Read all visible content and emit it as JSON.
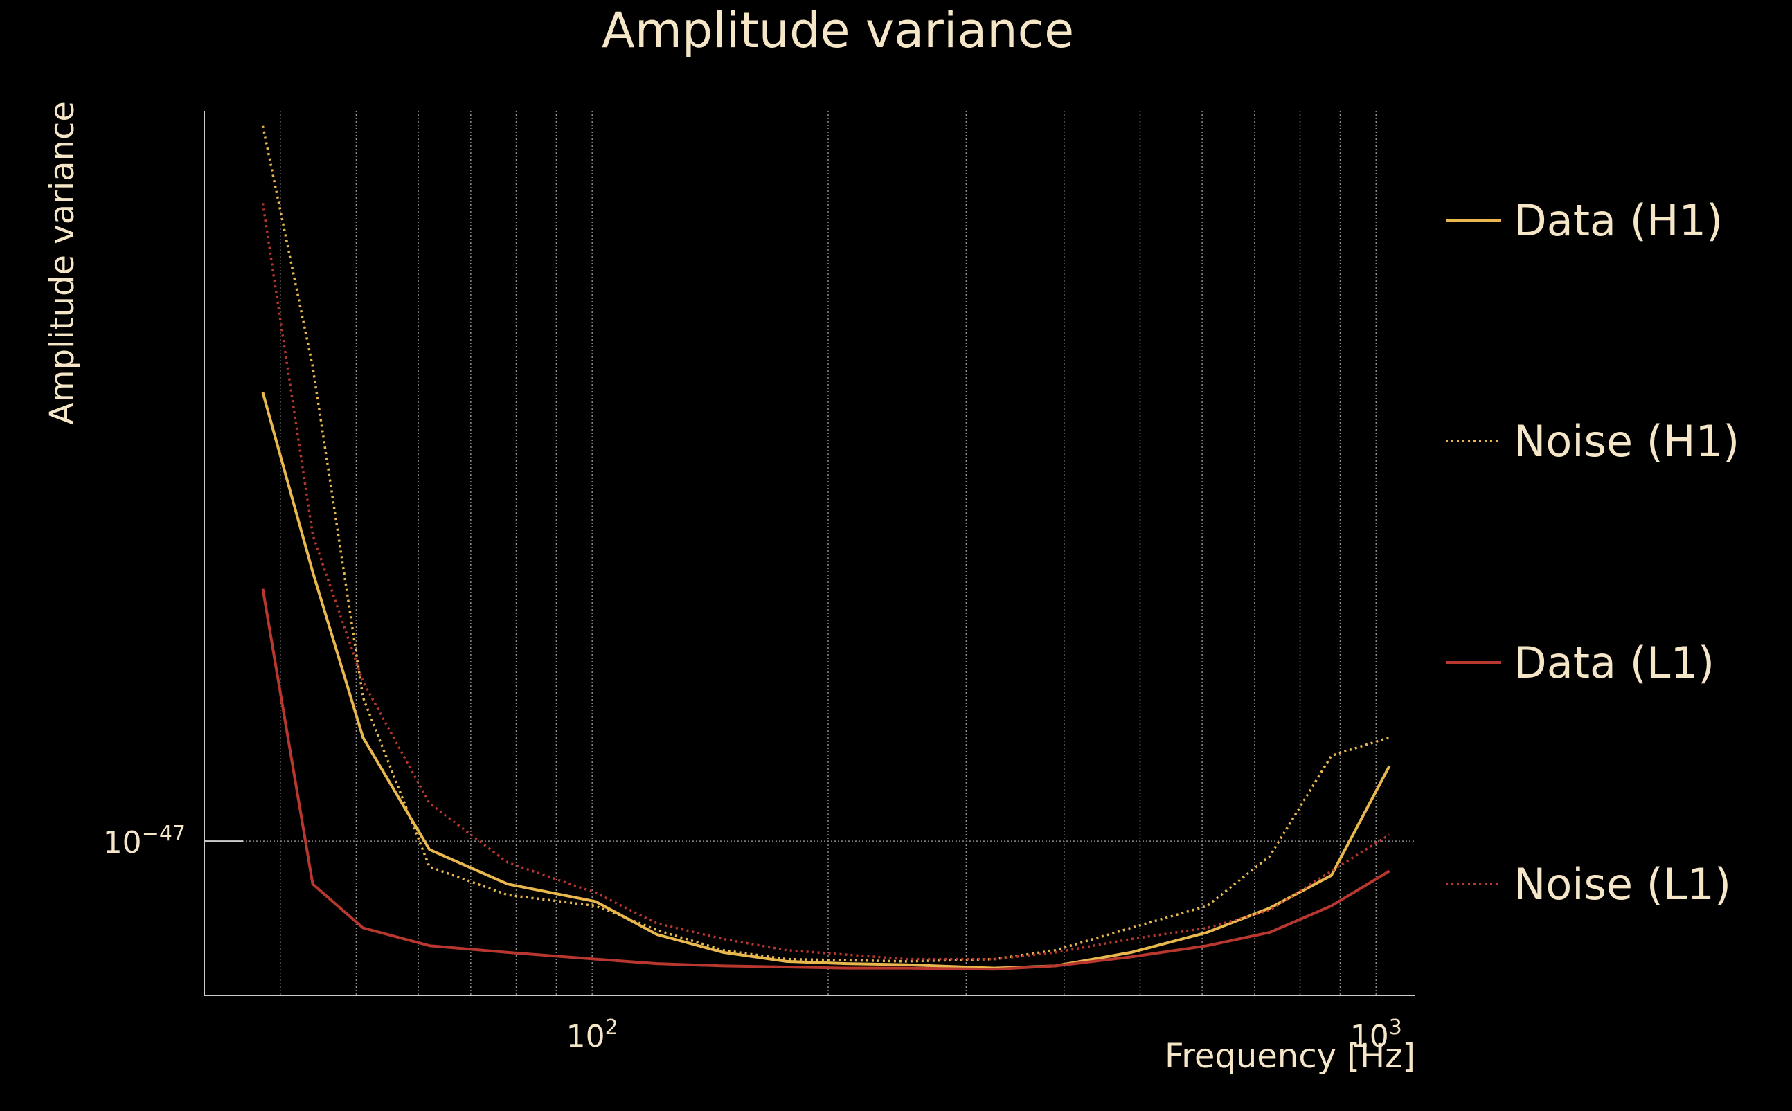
{
  "chart_data": {
    "type": "line",
    "title": "Amplitude variance",
    "xlabel": "Frequency [Hz]",
    "ylabel": "Amplitude variance",
    "xscale": "log",
    "yscale": "log",
    "xlim": [
      32,
      1120
    ],
    "ylim": [
      9.3e-48,
      1.41e-47
    ],
    "grid": true,
    "legend_position": "right",
    "x_ticks": [
      {
        "value": 100,
        "base": "10",
        "exp": "2"
      },
      {
        "value": 1000,
        "base": "10",
        "exp": "3"
      }
    ],
    "y_ticks": [
      {
        "value": 1e-47,
        "base": "10",
        "exp": "−47"
      }
    ],
    "series": [
      {
        "name": "Data (H1)",
        "color": "#e8b84e",
        "style": "solid",
        "x": [
          38,
          44,
          51,
          62,
          78,
          101,
          121,
          147,
          177,
          211,
          252,
          326,
          390,
          487,
          609,
          732,
          877,
          1040
        ],
        "y": [
          1.235e-47,
          1.135e-47,
          1.05e-47,
          9.96e-48,
          9.8e-48,
          9.72e-48,
          9.57e-48,
          9.49e-48,
          9.45e-48,
          9.44e-48,
          9.435e-48,
          9.42e-48,
          9.43e-48,
          9.49e-48,
          9.58e-48,
          9.69e-48,
          9.84e-48,
          1.036e-47
        ]
      },
      {
        "name": "Noise (H1)",
        "color": "#e8b84e",
        "style": "dotted",
        "x": [
          38,
          44,
          51,
          62,
          78,
          101,
          121,
          147,
          177,
          211,
          252,
          326,
          390,
          487,
          609,
          732,
          877,
          1040
        ],
        "y": [
          1.4e-47,
          1.25e-47,
          1.07e-47,
          9.88e-48,
          9.75e-48,
          9.7e-48,
          9.59e-48,
          9.5e-48,
          9.46e-48,
          9.455e-48,
          9.45e-48,
          9.46e-48,
          9.5e-48,
          9.6e-48,
          9.7e-48,
          9.93e-48,
          1.041e-47,
          1.05e-47
        ]
      },
      {
        "name": "Data (L1)",
        "color": "#b8372e",
        "style": "solid",
        "x": [
          38,
          44,
          51,
          62,
          78,
          101,
          121,
          147,
          177,
          211,
          252,
          326,
          390,
          487,
          609,
          732,
          877,
          1040
        ],
        "y": [
          1.126e-47,
          9.8e-48,
          9.6e-48,
          9.52e-48,
          9.49e-48,
          9.46e-48,
          9.44e-48,
          9.43e-48,
          9.425e-48,
          9.42e-48,
          9.42e-48,
          9.415e-48,
          9.43e-48,
          9.47e-48,
          9.52e-48,
          9.58e-48,
          9.7e-48,
          9.86e-48
        ]
      },
      {
        "name": "Noise (L1)",
        "color": "#b8372e",
        "style": "dotted",
        "x": [
          38,
          44,
          51,
          62,
          78,
          101,
          121,
          147,
          177,
          211,
          252,
          326,
          390,
          487,
          609,
          732,
          877,
          1040
        ],
        "y": [
          1.35e-47,
          1.155e-47,
          1.078e-47,
          1.018e-47,
          9.9e-48,
          9.76e-48,
          9.62e-48,
          9.55e-48,
          9.5e-48,
          9.48e-48,
          9.46e-48,
          9.46e-48,
          9.49e-48,
          9.55e-48,
          9.6e-48,
          9.68e-48,
          9.86e-48,
          1.003e-47
        ]
      }
    ]
  }
}
